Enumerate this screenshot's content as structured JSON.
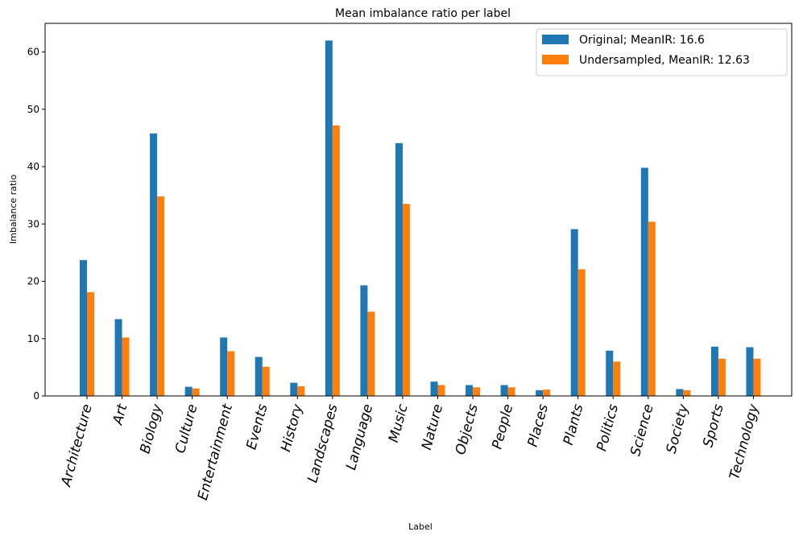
{
  "chart_data": {
    "type": "bar",
    "title": "Mean imbalance ratio per label",
    "xlabel": "Label",
    "ylabel": "Imbalance ratio",
    "ylim": [
      0,
      65
    ],
    "yticks": [
      0,
      10,
      20,
      30,
      40,
      50,
      60
    ],
    "legend_position": "top-right",
    "categories": [
      "Architecture",
      "Art",
      "Biology",
      "Culture",
      "Entertainment",
      "Events",
      "History",
      "Landscapes",
      "Language",
      "Music",
      "Nature",
      "Objects",
      "People",
      "Places",
      "Plants",
      "Politics",
      "Science",
      "Society",
      "Sports",
      "Technology"
    ],
    "series": [
      {
        "name": "Original; MeanIR: 16.6",
        "color": "#1f77b4",
        "values": [
          23.7,
          13.4,
          45.8,
          1.6,
          10.2,
          6.8,
          2.3,
          62.0,
          19.3,
          44.1,
          2.5,
          1.9,
          1.9,
          1.0,
          29.1,
          7.9,
          39.8,
          1.2,
          8.6,
          8.5
        ]
      },
      {
        "name": "Undersampled, MeanIR: 12.63",
        "color": "#ff7f0e",
        "values": [
          18.1,
          10.2,
          34.8,
          1.3,
          7.8,
          5.1,
          1.7,
          47.2,
          14.7,
          33.5,
          1.9,
          1.5,
          1.5,
          1.1,
          22.1,
          6.0,
          30.4,
          1.0,
          6.5,
          6.5
        ]
      }
    ]
  }
}
